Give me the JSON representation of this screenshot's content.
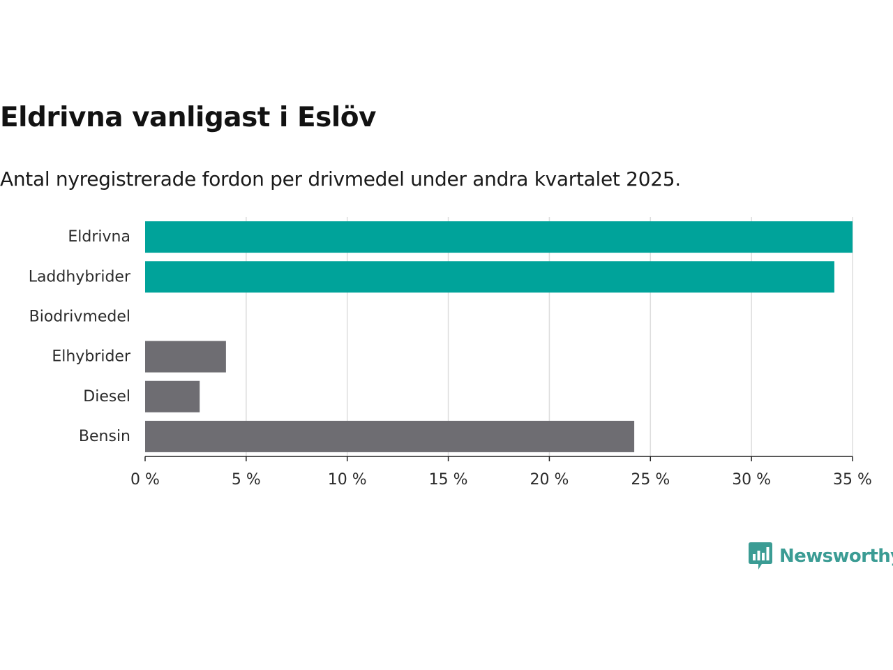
{
  "title": "Eldrivna vanligast i Eslöv",
  "subtitle": "Antal nyregistrerade fordon per drivmedel under andra kvartalet 2025.",
  "brand": {
    "name": "Newsworthy",
    "icon": "newsworthy-logo-icon",
    "color": "#3b9c94"
  },
  "colors": {
    "highlight": "#00a39a",
    "default": "#6e6d72",
    "grid": "#dddddd",
    "axis": "#222222"
  },
  "chart_data": {
    "type": "bar",
    "orientation": "horizontal",
    "categories": [
      "Eldrivna",
      "Laddhybrider",
      "Biodrivmedel",
      "Elhybrider",
      "Diesel",
      "Bensin"
    ],
    "values": [
      35.0,
      34.1,
      0.0,
      4.0,
      2.7,
      24.2
    ],
    "highlighted": [
      true,
      true,
      false,
      false,
      false,
      false
    ],
    "xlim": [
      0,
      35
    ],
    "xticks": [
      0,
      5,
      10,
      15,
      20,
      25,
      30,
      35
    ],
    "xtick_labels": [
      "0 %",
      "5 %",
      "10 %",
      "15 %",
      "20 %",
      "25 %",
      "30 %",
      "35 %"
    ],
    "unit": "%",
    "grid": "vertical"
  }
}
